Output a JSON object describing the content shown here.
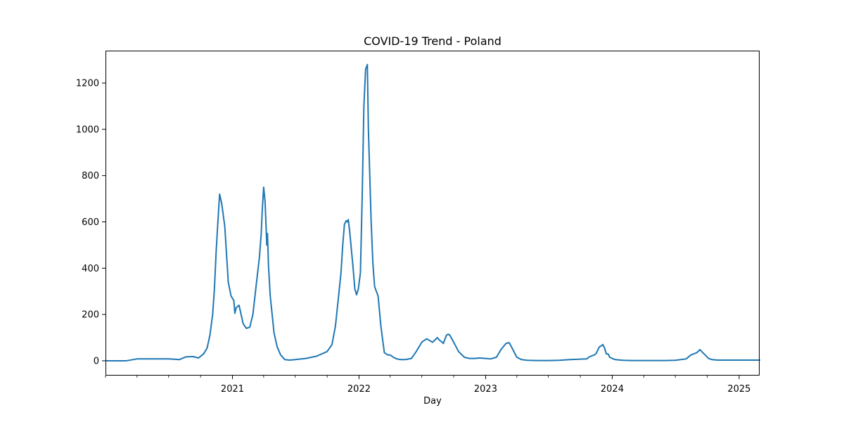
{
  "chart_data": {
    "type": "line",
    "title": "COVID-19 Trend - Poland",
    "xlabel": "Day",
    "ylabel": "",
    "xlim": [
      "2020-01-01",
      "2025-03-01"
    ],
    "ylim": [
      -64,
      1340
    ],
    "y_ticks": [
      0,
      200,
      400,
      600,
      800,
      1000,
      1200
    ],
    "x_ticks": [
      {
        "date": "2021-01-01",
        "label": "2021"
      },
      {
        "date": "2022-01-01",
        "label": "2022"
      },
      {
        "date": "2023-01-01",
        "label": "2023"
      },
      {
        "date": "2024-01-01",
        "label": "2024"
      },
      {
        "date": "2025-01-01",
        "label": "2025"
      }
    ],
    "grid": false,
    "legend": "none",
    "color": "#1f77b4",
    "series": [
      {
        "x": [
          "2020-01-01",
          "2020-03-01",
          "2020-04-01",
          "2020-05-01",
          "2020-06-01",
          "2020-07-01",
          "2020-08-01",
          "2020-08-20",
          "2020-09-10",
          "2020-09-25",
          "2020-10-10",
          "2020-10-20",
          "2020-10-28",
          "2020-11-05",
          "2020-11-10",
          "2020-11-15",
          "2020-11-20",
          "2020-11-25",
          "2020-12-01",
          "2020-12-10",
          "2020-12-20",
          "2020-12-28",
          "2021-01-05",
          "2021-01-08",
          "2021-01-12",
          "2021-01-20",
          "2021-02-01",
          "2021-02-10",
          "2021-02-20",
          "2021-03-01",
          "2021-03-10",
          "2021-03-20",
          "2021-03-25",
          "2021-03-28",
          "2021-04-01",
          "2021-04-05",
          "2021-04-08",
          "2021-04-10",
          "2021-04-12",
          "2021-04-15",
          "2021-04-20",
          "2021-05-01",
          "2021-05-10",
          "2021-05-20",
          "2021-06-01",
          "2021-06-15",
          "2021-07-01",
          "2021-08-01",
          "2021-09-01",
          "2021-10-01",
          "2021-10-15",
          "2021-10-25",
          "2021-11-01",
          "2021-11-10",
          "2021-11-15",
          "2021-11-20",
          "2021-11-25",
          "2021-11-28",
          "2021-12-01",
          "2021-12-05",
          "2021-12-10",
          "2021-12-15",
          "2021-12-20",
          "2021-12-25",
          "2021-12-30",
          "2022-01-05",
          "2022-01-10",
          "2022-01-15",
          "2022-01-20",
          "2022-01-25",
          "2022-01-28",
          "2022-02-01",
          "2022-02-05",
          "2022-02-10",
          "2022-02-15",
          "2022-02-20",
          "2022-02-25",
          "2022-03-05",
          "2022-03-15",
          "2022-03-25",
          "2022-04-01",
          "2022-04-10",
          "2022-04-20",
          "2022-05-01",
          "2022-05-15",
          "2022-06-01",
          "2022-06-15",
          "2022-07-01",
          "2022-07-15",
          "2022-08-01",
          "2022-08-15",
          "2022-08-20",
          "2022-08-25",
          "2022-09-01",
          "2022-09-10",
          "2022-09-15",
          "2022-09-20",
          "2022-10-01",
          "2022-10-15",
          "2022-11-01",
          "2022-11-15",
          "2022-12-01",
          "2022-12-15",
          "2023-01-01",
          "2023-01-15",
          "2023-02-01",
          "2023-02-15",
          "2023-03-01",
          "2023-03-10",
          "2023-03-20",
          "2023-04-01",
          "2023-04-15",
          "2023-05-01",
          "2023-06-01",
          "2023-07-01",
          "2023-08-01",
          "2023-09-01",
          "2023-10-01",
          "2023-10-20",
          "2023-10-25",
          "2023-11-01",
          "2023-11-10",
          "2023-11-15",
          "2023-11-20",
          "2023-11-25",
          "2023-12-01",
          "2023-12-05",
          "2023-12-10",
          "2023-12-15",
          "2023-12-20",
          "2023-12-25",
          "2024-01-01",
          "2024-01-10",
          "2024-02-01",
          "2024-03-01",
          "2024-04-01",
          "2024-05-01",
          "2024-06-01",
          "2024-07-01",
          "2024-08-01",
          "2024-08-15",
          "2024-09-01",
          "2024-09-10",
          "2024-09-15",
          "2024-09-25",
          "2024-10-05",
          "2024-10-15",
          "2024-11-01",
          "2024-12-01",
          "2025-01-01",
          "2025-02-01",
          "2025-03-01"
        ],
        "y": [
          0,
          0,
          8,
          8,
          8,
          8,
          5,
          17,
          18,
          12,
          30,
          55,
          110,
          200,
          310,
          470,
          600,
          720,
          680,
          580,
          340,
          280,
          260,
          205,
          230,
          240,
          160,
          140,
          145,
          200,
          320,
          450,
          550,
          650,
          750,
          690,
          580,
          500,
          550,
          410,
          280,
          120,
          60,
          25,
          5,
          3,
          5,
          10,
          20,
          40,
          70,
          150,
          250,
          380,
          500,
          590,
          605,
          600,
          610,
          560,
          480,
          400,
          310,
          285,
          310,
          380,
          700,
          1100,
          1260,
          1280,
          1000,
          800,
          600,
          420,
          320,
          300,
          280,
          150,
          35,
          25,
          25,
          15,
          8,
          5,
          5,
          10,
          40,
          80,
          95,
          80,
          100,
          90,
          85,
          75,
          110,
          115,
          110,
          80,
          40,
          15,
          10,
          10,
          12,
          10,
          8,
          15,
          50,
          75,
          78,
          50,
          15,
          5,
          2,
          1,
          1,
          2,
          5,
          7,
          8,
          15,
          20,
          25,
          30,
          45,
          60,
          65,
          70,
          55,
          30,
          30,
          15,
          10,
          5,
          2,
          1,
          1,
          1,
          1,
          2,
          8,
          25,
          35,
          48,
          40,
          25,
          10,
          5,
          3,
          3,
          3,
          3,
          3
        ]
      }
    ]
  }
}
